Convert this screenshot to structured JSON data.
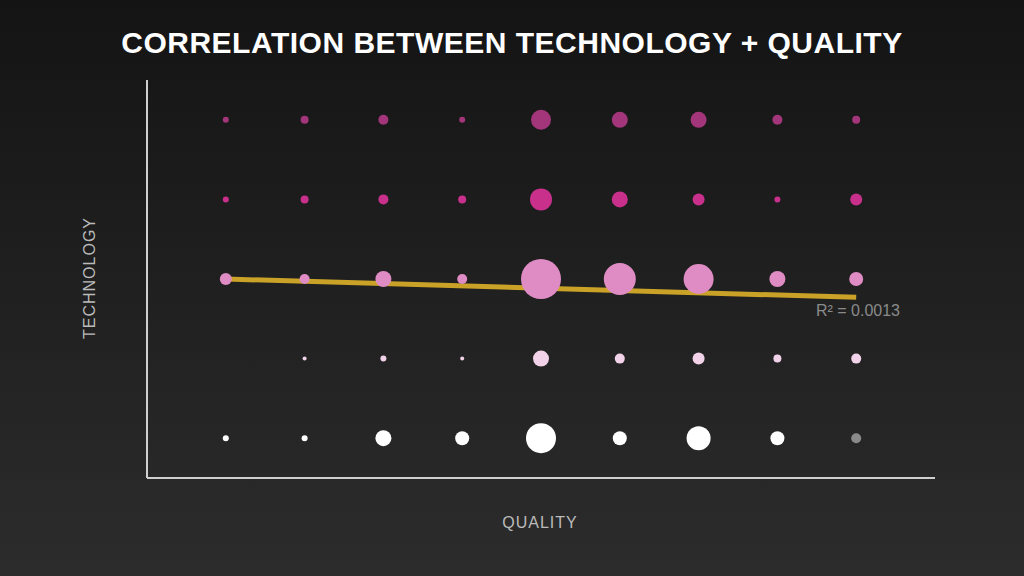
{
  "chart_data": {
    "type": "bubble",
    "title": "CORRELATION BETWEEN TECHNOLOGY + QUALITY",
    "x_label": "QUALITY",
    "y_label": "TECHNOLOGY",
    "x": [
      1,
      2,
      3,
      4,
      5,
      6,
      7,
      8,
      9
    ],
    "xlim": [
      0,
      10
    ],
    "ylim": [
      0.5,
      5.5
    ],
    "tick_labels": false,
    "series": [
      {
        "y": 5,
        "color": "#a3357a",
        "sizes": [
          9,
          16,
          25,
          9,
          100,
          64,
          64,
          25,
          16
        ]
      },
      {
        "y": 4,
        "color": "#c8308c",
        "sizes": [
          9,
          16,
          25,
          16,
          121,
          64,
          36,
          9,
          36
        ]
      },
      {
        "y": 3,
        "color": "#e08cc4",
        "sizes": [
          36,
          25,
          64,
          25,
          400,
          256,
          225,
          64,
          49
        ]
      },
      {
        "y": 2,
        "color": "#f2d2e8",
        "sizes": [
          null,
          4,
          9,
          4,
          64,
          25,
          36,
          16,
          25
        ]
      },
      {
        "y": 1,
        "color": "#ffffff",
        "colors": [
          "#ffffff",
          "#ffffff",
          "#ffffff",
          "#ffffff",
          "#ffffff",
          "#ffffff",
          "#ffffff",
          "#ffffff",
          "#8a8a8a"
        ],
        "sizes": [
          9,
          9,
          64,
          49,
          225,
          49,
          144,
          49,
          25
        ]
      }
    ],
    "trend": {
      "x": [
        1,
        9
      ],
      "y": [
        3.0,
        2.77
      ],
      "color": "#c9a227",
      "label": "R² = 0.0013"
    }
  }
}
